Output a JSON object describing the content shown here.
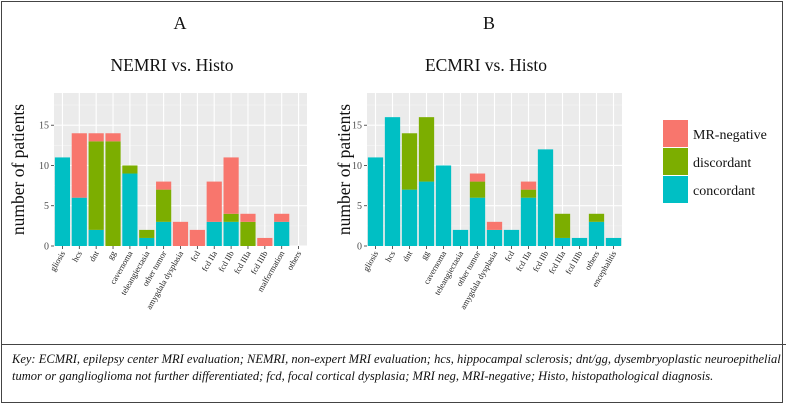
{
  "figure": {
    "key_text": "Key: ECMRI, epilepsy center MRI evaluation; NEMRI, non-expert MRI evaluation; hcs, hippocampal sclerosis; dnt/gg, dysembryoplastic neuroepithelial tumor or ganglioglioma not further differentiated; fcd, focal cortical dysplasia; MRI neg, MRI-negative; Histo, histopathological diagnosis."
  },
  "legend": {
    "items": [
      {
        "label": "MR-negative",
        "color": "#F8766D"
      },
      {
        "label": "discordant",
        "color": "#7CAE00"
      },
      {
        "label": "concordant",
        "color": "#00BFC4"
      }
    ]
  },
  "chart_data": [
    {
      "type": "bar",
      "stacked": true,
      "panel_letter": "A",
      "title": "NEMRI vs. Histo",
      "xlabel": "",
      "ylabel": "number of patients",
      "ylim": [
        0,
        19
      ],
      "yticks": [
        0,
        5,
        10,
        15
      ],
      "grid": true,
      "categories": [
        "gliosis",
        "hcs",
        "dnt",
        "gg",
        "cavernoma",
        "teleangiectasia",
        "other tumor",
        "amygdala dysplasia",
        "fcd",
        "fcd IIa",
        "fcd IIb",
        "fcd IIIa",
        "fcd IIIb",
        "malformation",
        "others"
      ],
      "series": [
        {
          "name": "concordant",
          "color": "#00BFC4",
          "values": [
            11,
            6,
            2,
            0,
            9,
            1,
            3,
            0,
            0,
            3,
            3,
            0,
            0,
            3,
            0
          ]
        },
        {
          "name": "discordant",
          "color": "#7CAE00",
          "values": [
            0,
            0,
            11,
            13,
            1,
            1,
            4,
            0,
            0,
            0,
            1,
            3,
            0,
            0,
            0
          ]
        },
        {
          "name": "MR-negative",
          "color": "#F8766D",
          "values": [
            0,
            8,
            1,
            1,
            0,
            0,
            1,
            3,
            2,
            5,
            7,
            1,
            1,
            1,
            0
          ]
        }
      ]
    },
    {
      "type": "bar",
      "stacked": true,
      "panel_letter": "B",
      "title": "ECMRI vs. Histo",
      "xlabel": "",
      "ylabel": "number of patients",
      "ylim": [
        0,
        19
      ],
      "yticks": [
        0,
        5,
        10,
        15
      ],
      "grid": true,
      "categories": [
        "gliosis",
        "hcs",
        "dnt",
        "gg",
        "cavernoma",
        "teleangiectasia",
        "other tumor",
        "amygdala dysplasia",
        "fcd",
        "fcd IIa",
        "fcd IIb",
        "fcd IIIa",
        "fcd IIIb",
        "others",
        "encephalitis"
      ],
      "series": [
        {
          "name": "concordant",
          "color": "#00BFC4",
          "values": [
            11,
            16,
            7,
            8,
            10,
            2,
            6,
            2,
            2,
            6,
            12,
            1,
            1,
            3,
            1
          ]
        },
        {
          "name": "discordant",
          "color": "#7CAE00",
          "values": [
            0,
            0,
            7,
            8,
            0,
            0,
            2,
            0,
            0,
            1,
            0,
            3,
            0,
            1,
            0
          ]
        },
        {
          "name": "MR-negative",
          "color": "#F8766D",
          "values": [
            0,
            0,
            0,
            0,
            0,
            0,
            1,
            1,
            0,
            1,
            0,
            0,
            0,
            0,
            0
          ]
        }
      ]
    }
  ]
}
